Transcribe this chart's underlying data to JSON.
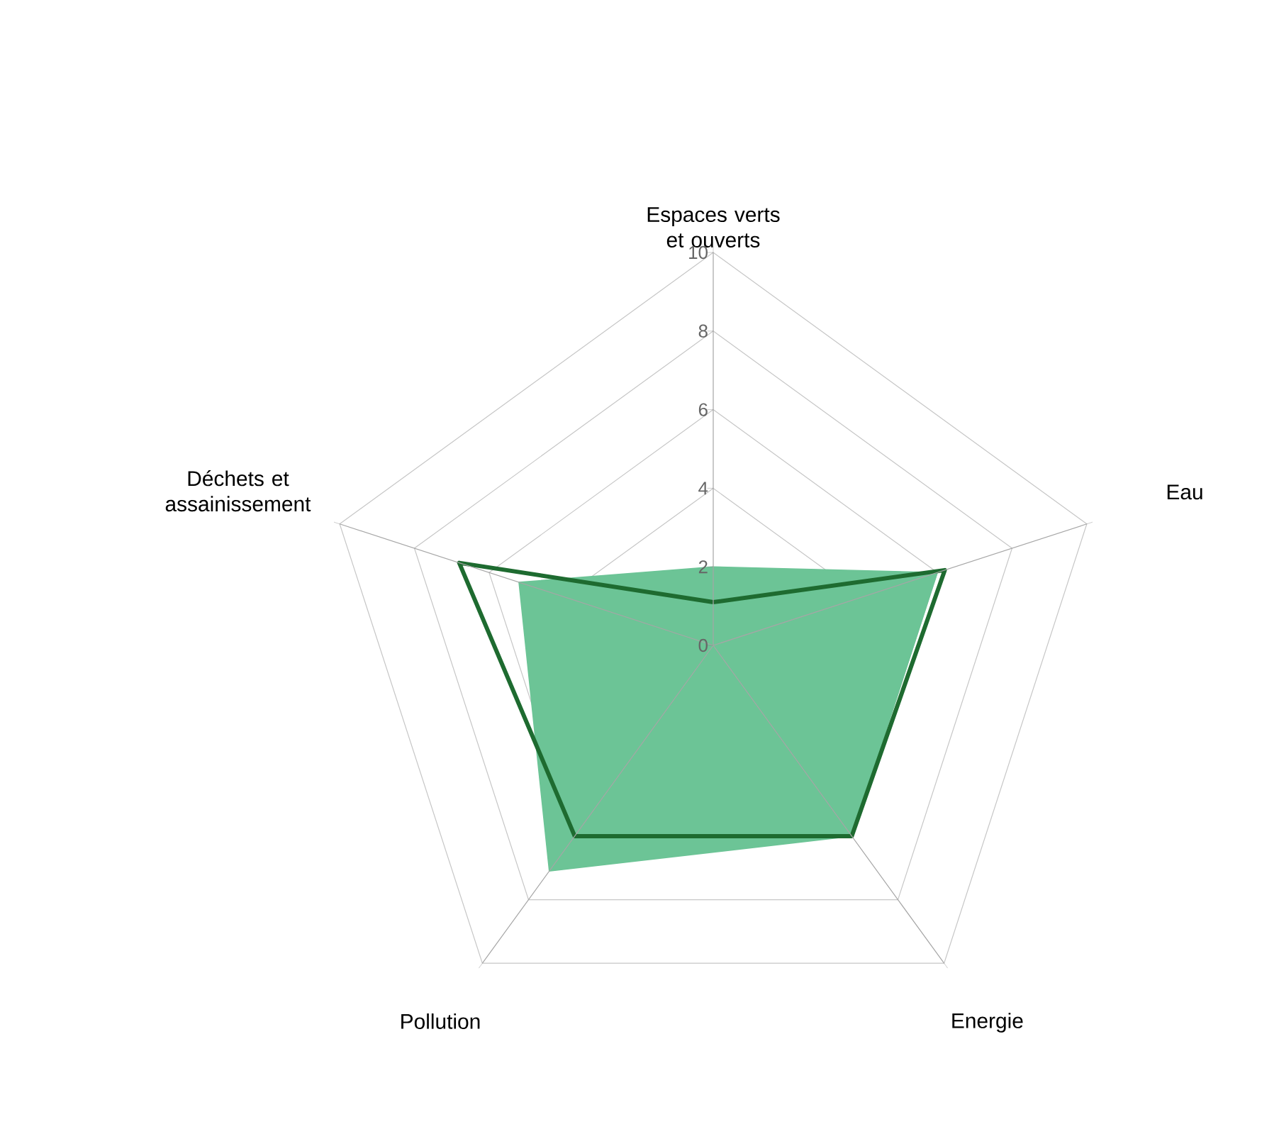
{
  "chart_data": {
    "type": "radar",
    "categories": [
      "Espaces verts et ouverts",
      "Eau",
      "Energie",
      "Pollution",
      "Déchets et assainissement"
    ],
    "ylim": [
      0,
      10
    ],
    "yticks": [
      0,
      2,
      4,
      6,
      8,
      10
    ],
    "grid": true,
    "series": [
      {
        "color": "#6cc496",
        "values": [
          2,
          6,
          6,
          7.1,
          5.2
        ]
      },
      {
        "color": "#1e6b30",
        "values": [
          1.1,
          6.2,
          6,
          6,
          6.8
        ]
      }
    ]
  }
}
